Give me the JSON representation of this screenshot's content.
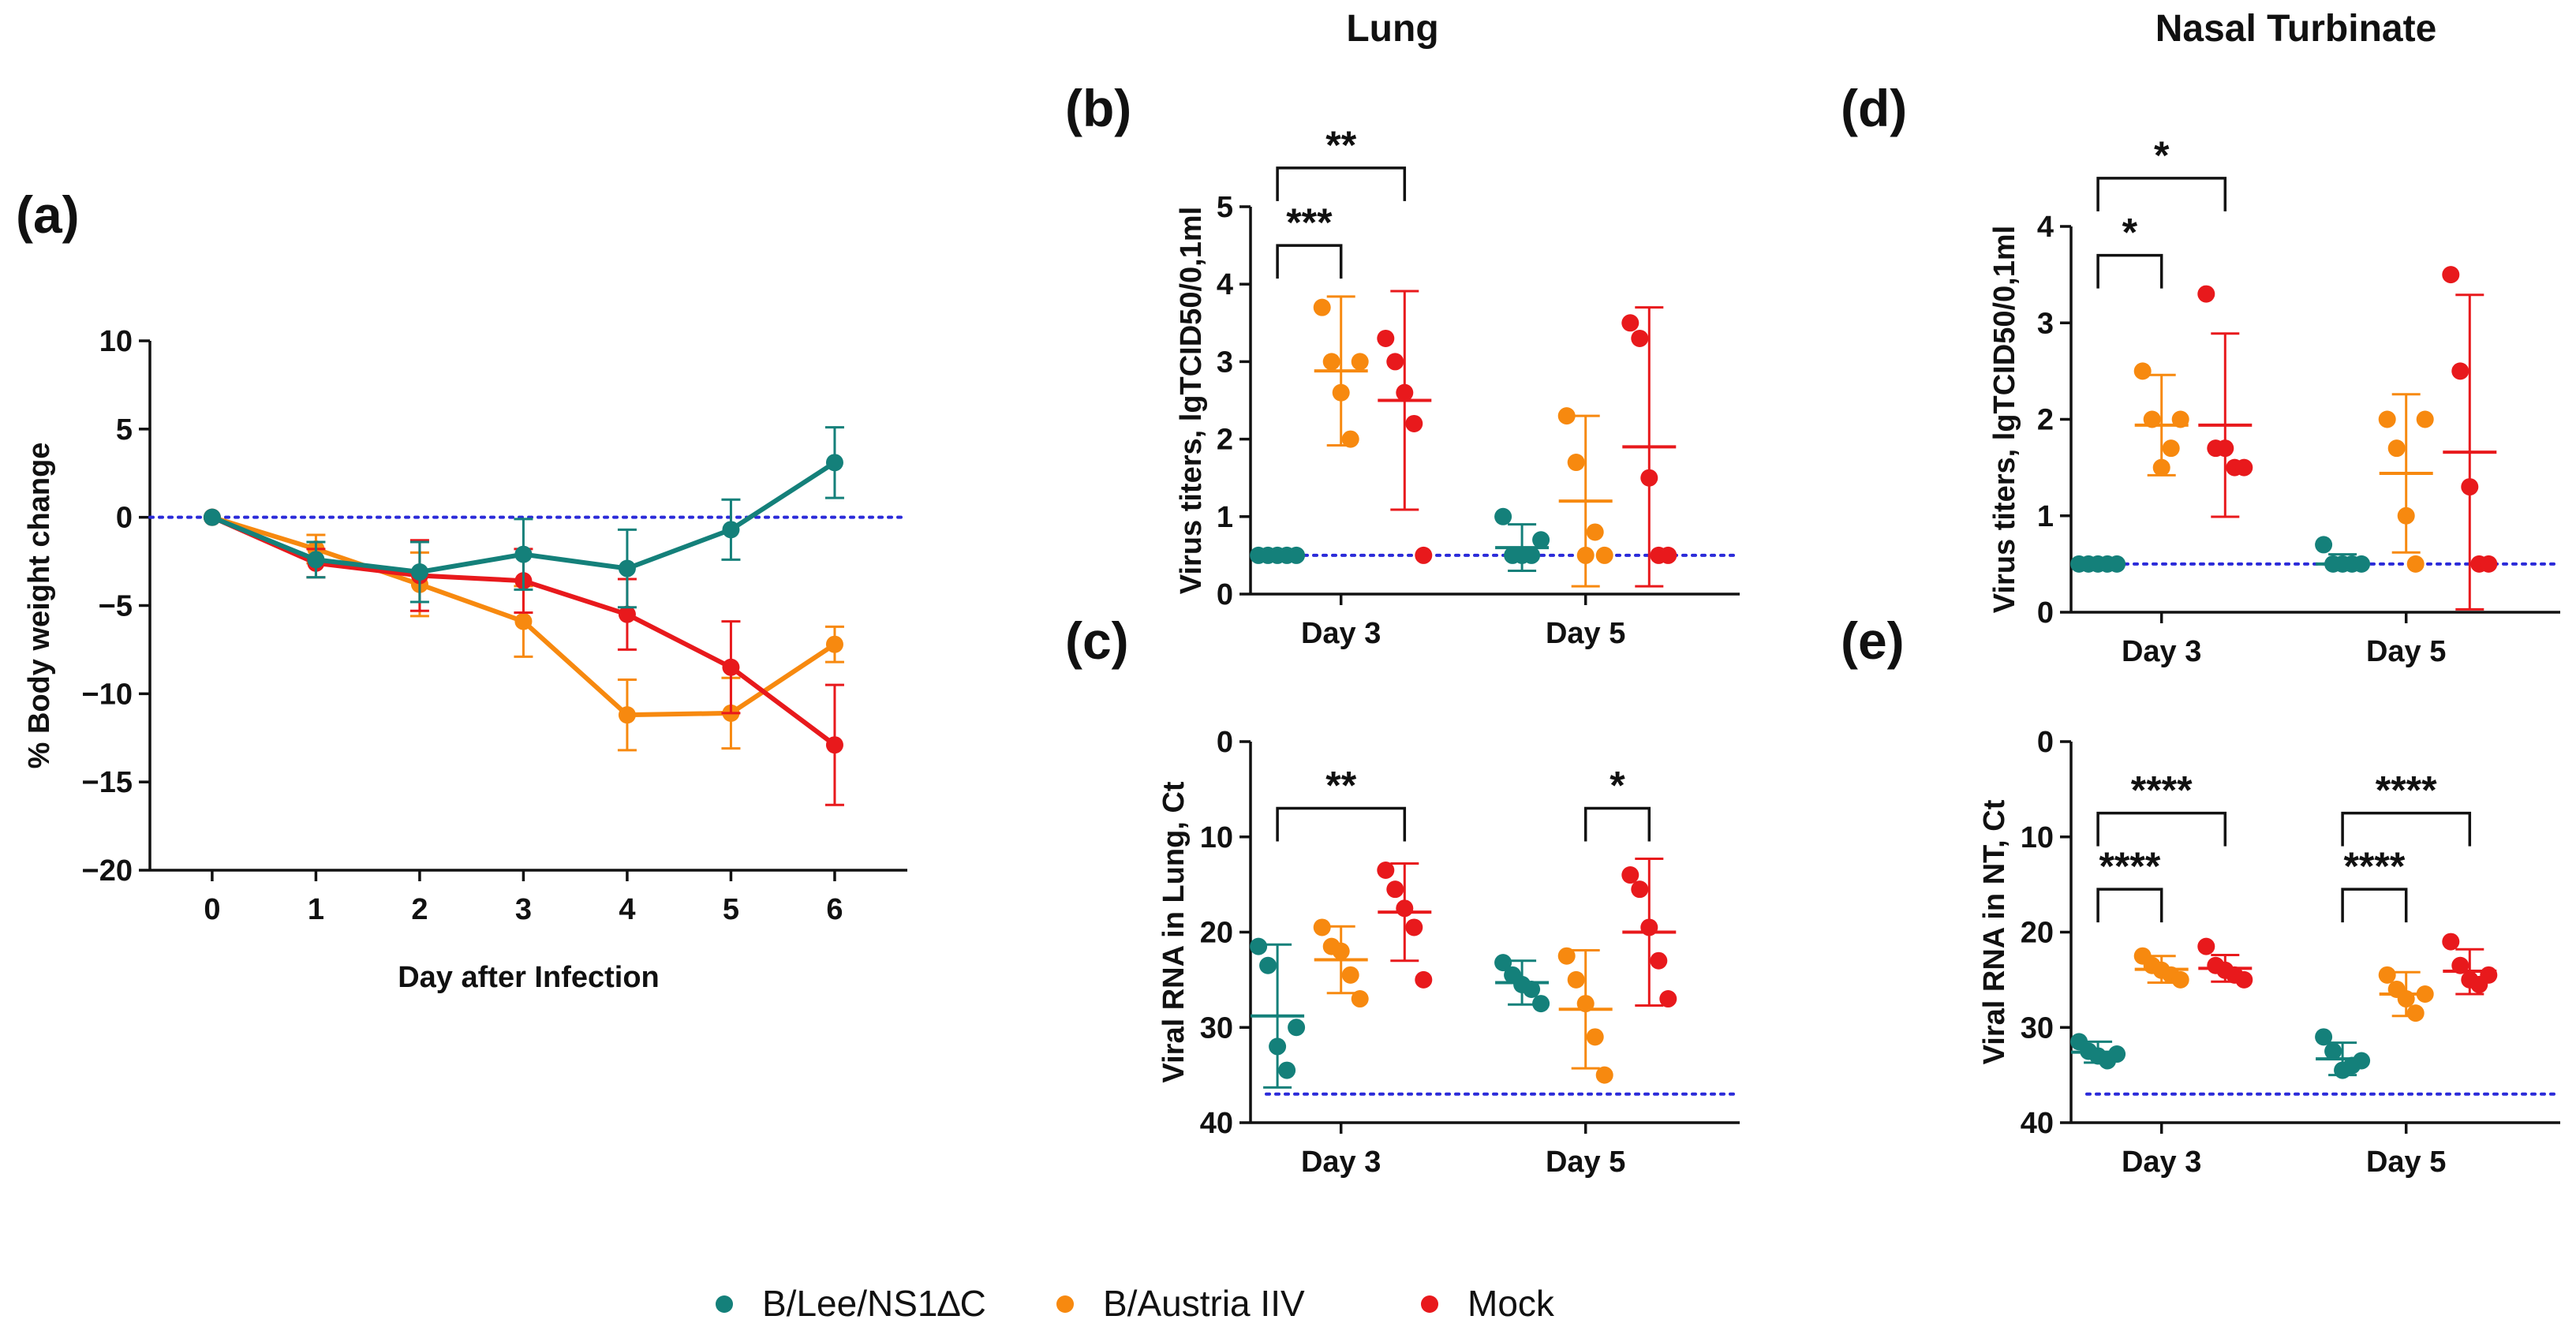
{
  "figure": {
    "column_titles": {
      "lung": "Lung",
      "nasal": "Nasal Turbinate"
    },
    "colors": {
      "teal": "#14807a",
      "orange": "#f7890f",
      "red": "#e8191c",
      "ref": "#2b2bd9"
    },
    "legend": [
      {
        "label": "B/Lee/NS1∆C",
        "color": "#14807a"
      },
      {
        "label": "B/Austria IIV",
        "color": "#f7890f"
      },
      {
        "label": "Mock",
        "color": "#e8191c"
      }
    ]
  },
  "chart_data": [
    {
      "id": "a",
      "letter": "(a)",
      "type": "line",
      "xlabel": "Day after Infection",
      "ylabel": "% Body weight change",
      "xlim": [
        -0.6,
        6.7
      ],
      "ylim": [
        -20,
        10
      ],
      "yticks": [
        10,
        5,
        0,
        -5,
        -10,
        -15,
        -20
      ],
      "ytick_labels": [
        "10",
        "5",
        "0",
        "−5",
        "−10",
        "−15",
        "−20"
      ],
      "x": [
        0,
        1,
        2,
        3,
        4,
        5,
        6
      ],
      "x_labels": [
        "0",
        "1",
        "2",
        "3",
        "4",
        "5",
        "6"
      ],
      "reference_line": 0,
      "series": [
        {
          "name": "B/Austria IIV",
          "color": "#f7890f",
          "values": [
            0,
            -1.8,
            -3.8,
            -5.9,
            -11.2,
            -11.1,
            -7.2
          ],
          "errors": [
            0,
            0.8,
            1.8,
            2.0,
            2.0,
            2.0,
            1.0
          ]
        },
        {
          "name": "Mock",
          "color": "#e8191c",
          "values": [
            0,
            -2.6,
            -3.3,
            -3.6,
            -5.5,
            -8.5,
            -12.9
          ],
          "errors": [
            0,
            0.8,
            2.0,
            1.8,
            2.0,
            2.6,
            3.4
          ]
        },
        {
          "name": "B/Lee/NS1∆C",
          "color": "#14807a",
          "values": [
            0,
            -2.4,
            -3.1,
            -2.1,
            -2.9,
            -0.7,
            3.1
          ],
          "errors": [
            0,
            1.0,
            1.7,
            2.0,
            2.2,
            1.7,
            2.0
          ]
        }
      ]
    },
    {
      "id": "b",
      "letter": "(b)",
      "type": "scatter",
      "ylabel": "Virus titers, lgTCID50/0,1ml",
      "ylim": [
        0,
        5
      ],
      "yticks": [
        0,
        1,
        2,
        3,
        4,
        5
      ],
      "ytick_labels": [
        "0",
        "1",
        "2",
        "3",
        "4",
        "5"
      ],
      "y_inverted": false,
      "reference_line": 0.5,
      "categories": [
        "Day 3",
        "Day 5"
      ],
      "groups": [
        {
          "name": "B/Lee/NS1∆C",
          "color": "#14807a",
          "values": [
            [
              0.5,
              0.5,
              0.5,
              0.5,
              0.5
            ],
            [
              1.0,
              0.5,
              0.5,
              0.5,
              0.7
            ]
          ],
          "mean": [
            0.5,
            0.6
          ],
          "sd_low": [
            0.5,
            0.3
          ],
          "sd_high": [
            0.5,
            0.9
          ]
        },
        {
          "name": "B/Austria IIV",
          "color": "#f7890f",
          "values": [
            [
              3.7,
              3.0,
              2.6,
              2.0,
              3.0
            ],
            [
              2.3,
              1.7,
              0.5,
              0.8,
              0.5
            ]
          ],
          "mean": [
            2.88,
            1.2
          ],
          "sd_low": [
            1.92,
            0.1
          ],
          "sd_high": [
            3.84,
            2.3
          ]
        },
        {
          "name": "Mock",
          "color": "#e8191c",
          "values": [
            [
              3.3,
              3.0,
              2.6,
              2.2,
              0.5
            ],
            [
              3.5,
              3.3,
              1.5,
              0.5,
              0.5
            ]
          ],
          "mean": [
            2.5,
            1.9
          ],
          "sd_low": [
            1.09,
            0.1
          ],
          "sd_high": [
            3.91,
            3.7
          ]
        }
      ],
      "brackets": [
        {
          "category": 0,
          "from": 0,
          "to": 1,
          "y": 4.5,
          "label": "***",
          "level": 0
        },
        {
          "category": 0,
          "from": 0,
          "to": 2,
          "y": 5.5,
          "label": "**",
          "level": 1
        }
      ]
    },
    {
      "id": "c",
      "letter": "(c)",
      "type": "scatter",
      "ylabel": "Viral RNA in Lung, Ct",
      "ylim": [
        0,
        40
      ],
      "yticks": [
        0,
        10,
        20,
        30,
        40
      ],
      "ytick_labels": [
        "0",
        "10",
        "20",
        "30",
        "40"
      ],
      "y_inverted": true,
      "reference_line": 37,
      "categories": [
        "Day 3",
        "Day 5"
      ],
      "groups": [
        {
          "name": "B/Lee/NS1∆C",
          "color": "#14807a",
          "values": [
            [
              21.5,
              23.5,
              32.0,
              34.5,
              30.0
            ],
            [
              23.2,
              24.5,
              25.5,
              26.0,
              27.5
            ]
          ],
          "mean": [
            28.8,
            25.3
          ],
          "sd_low": [
            21.3,
            23.0
          ],
          "sd_high": [
            36.3,
            27.6
          ]
        },
        {
          "name": "B/Austria IIV",
          "color": "#f7890f",
          "values": [
            [
              19.5,
              21.5,
              22.0,
              24.5,
              27.0
            ],
            [
              22.5,
              25.0,
              27.5,
              31.0,
              35.0
            ]
          ],
          "mean": [
            22.9,
            28.1
          ],
          "sd_low": [
            19.4,
            21.9
          ],
          "sd_high": [
            26.4,
            34.3
          ]
        },
        {
          "name": "Mock",
          "color": "#e8191c",
          "values": [
            [
              13.5,
              15.5,
              17.5,
              19.5,
              25.0
            ],
            [
              14.0,
              15.5,
              19.5,
              23.0,
              27.0
            ]
          ],
          "mean": [
            17.9,
            20.0
          ],
          "sd_low": [
            12.8,
            12.3
          ],
          "sd_high": [
            23.0,
            27.7
          ]
        }
      ],
      "brackets": [
        {
          "category": 0,
          "from": 0,
          "to": 2,
          "y": 7.0,
          "label": "**",
          "level": 0
        },
        {
          "category": 1,
          "from": 1,
          "to": 2,
          "y": 7.0,
          "label": "*",
          "level": 0
        }
      ]
    },
    {
      "id": "d",
      "letter": "(d)",
      "type": "scatter",
      "ylabel": "Virus titers, lgTCID50/0,1ml",
      "ylim": [
        0,
        4
      ],
      "yticks": [
        0,
        1,
        2,
        3,
        4
      ],
      "ytick_labels": [
        "0",
        "1",
        "2",
        "3",
        "4"
      ],
      "y_inverted": false,
      "reference_line": 0.5,
      "categories": [
        "Day 3",
        "Day 5"
      ],
      "groups": [
        {
          "name": "B/Lee/NS1∆C",
          "color": "#14807a",
          "values": [
            [
              0.5,
              0.5,
              0.5,
              0.5,
              0.5
            ],
            [
              0.7,
              0.5,
              0.5,
              0.5,
              0.5
            ]
          ],
          "mean": [
            0.5,
            0.5
          ],
          "sd_low": [
            0.5,
            0.45
          ],
          "sd_high": [
            0.5,
            0.6
          ]
        },
        {
          "name": "B/Austria IIV",
          "color": "#f7890f",
          "values": [
            [
              2.5,
              2.0,
              1.5,
              1.7,
              2.0
            ],
            [
              2.0,
              1.7,
              1.0,
              0.5,
              2.0
            ]
          ],
          "mean": [
            1.94,
            1.44
          ],
          "sd_low": [
            1.42,
            0.62
          ],
          "sd_high": [
            2.46,
            2.26
          ]
        },
        {
          "name": "Mock",
          "color": "#e8191c",
          "values": [
            [
              3.3,
              1.7,
              1.7,
              1.5,
              1.5
            ],
            [
              3.5,
              2.5,
              1.3,
              0.5,
              0.5
            ]
          ],
          "mean": [
            1.94,
            1.66
          ],
          "sd_low": [
            0.99,
            0.03
          ],
          "sd_high": [
            2.89,
            3.29
          ]
        }
      ],
      "brackets": [
        {
          "category": 0,
          "from": 0,
          "to": 1,
          "y": 3.7,
          "label": "*",
          "level": 0
        },
        {
          "category": 0,
          "from": 0,
          "to": 2,
          "y": 4.5,
          "label": "*",
          "level": 1
        }
      ]
    },
    {
      "id": "e",
      "letter": "(e)",
      "type": "scatter",
      "ylabel": "Viral RNA in NT, Ct",
      "ylim": [
        0,
        40
      ],
      "yticks": [
        0,
        10,
        20,
        30,
        40
      ],
      "ytick_labels": [
        "0",
        "10",
        "20",
        "30",
        "40"
      ],
      "y_inverted": true,
      "reference_line": 37,
      "categories": [
        "Day 3",
        "Day 5"
      ],
      "groups": [
        {
          "name": "B/Lee/NS1∆C",
          "color": "#14807a",
          "values": [
            [
              31.5,
              32.5,
              33.0,
              33.5,
              32.8
            ],
            [
              31.0,
              32.5,
              34.5,
              34.0,
              33.5
            ]
          ],
          "mean": [
            32.6,
            33.3
          ],
          "sd_low": [
            31.5,
            31.6
          ],
          "sd_high": [
            33.7,
            35.0
          ]
        },
        {
          "name": "B/Austria IIV",
          "color": "#f7890f",
          "values": [
            [
              22.5,
              23.5,
              24.0,
              24.5,
              25.0
            ],
            [
              24.5,
              26.0,
              27.0,
              28.5,
              26.5
            ]
          ],
          "mean": [
            23.9,
            26.5
          ],
          "sd_low": [
            22.5,
            24.2
          ],
          "sd_high": [
            25.3,
            28.8
          ]
        },
        {
          "name": "Mock",
          "color": "#e8191c",
          "values": [
            [
              21.5,
              23.5,
              24.0,
              24.5,
              25.0
            ],
            [
              21.0,
              23.5,
              25.0,
              25.5,
              24.5
            ]
          ],
          "mean": [
            23.8,
            24.1
          ],
          "sd_low": [
            22.4,
            21.8
          ],
          "sd_high": [
            25.2,
            26.5
          ]
        }
      ],
      "brackets": [
        {
          "category": 0,
          "from": 0,
          "to": 1,
          "y": 15.5,
          "label": "****",
          "level": 0
        },
        {
          "category": 0,
          "from": 0,
          "to": 2,
          "y": 7.5,
          "label": "****",
          "level": 1
        },
        {
          "category": 1,
          "from": 0,
          "to": 1,
          "y": 15.5,
          "label": "****",
          "level": 0
        },
        {
          "category": 1,
          "from": 0,
          "to": 2,
          "y": 7.5,
          "label": "****",
          "level": 1
        }
      ]
    }
  ]
}
